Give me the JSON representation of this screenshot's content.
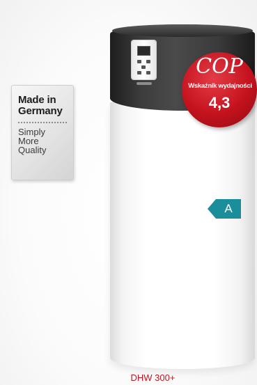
{
  "badge": {
    "title": "Made in\nGermany",
    "subtitle": "Simply\nMore\nQuality"
  },
  "cop": {
    "title": "COP",
    "label": "Wskaźnik wydajności",
    "value": "4,3"
  },
  "energy_class": {
    "label": "A",
    "color": "#1a8e9a"
  },
  "product": {
    "name": "DHW 300+"
  },
  "colors": {
    "accent_red": "#c4131e",
    "tank_top": "#3a3a3a"
  }
}
